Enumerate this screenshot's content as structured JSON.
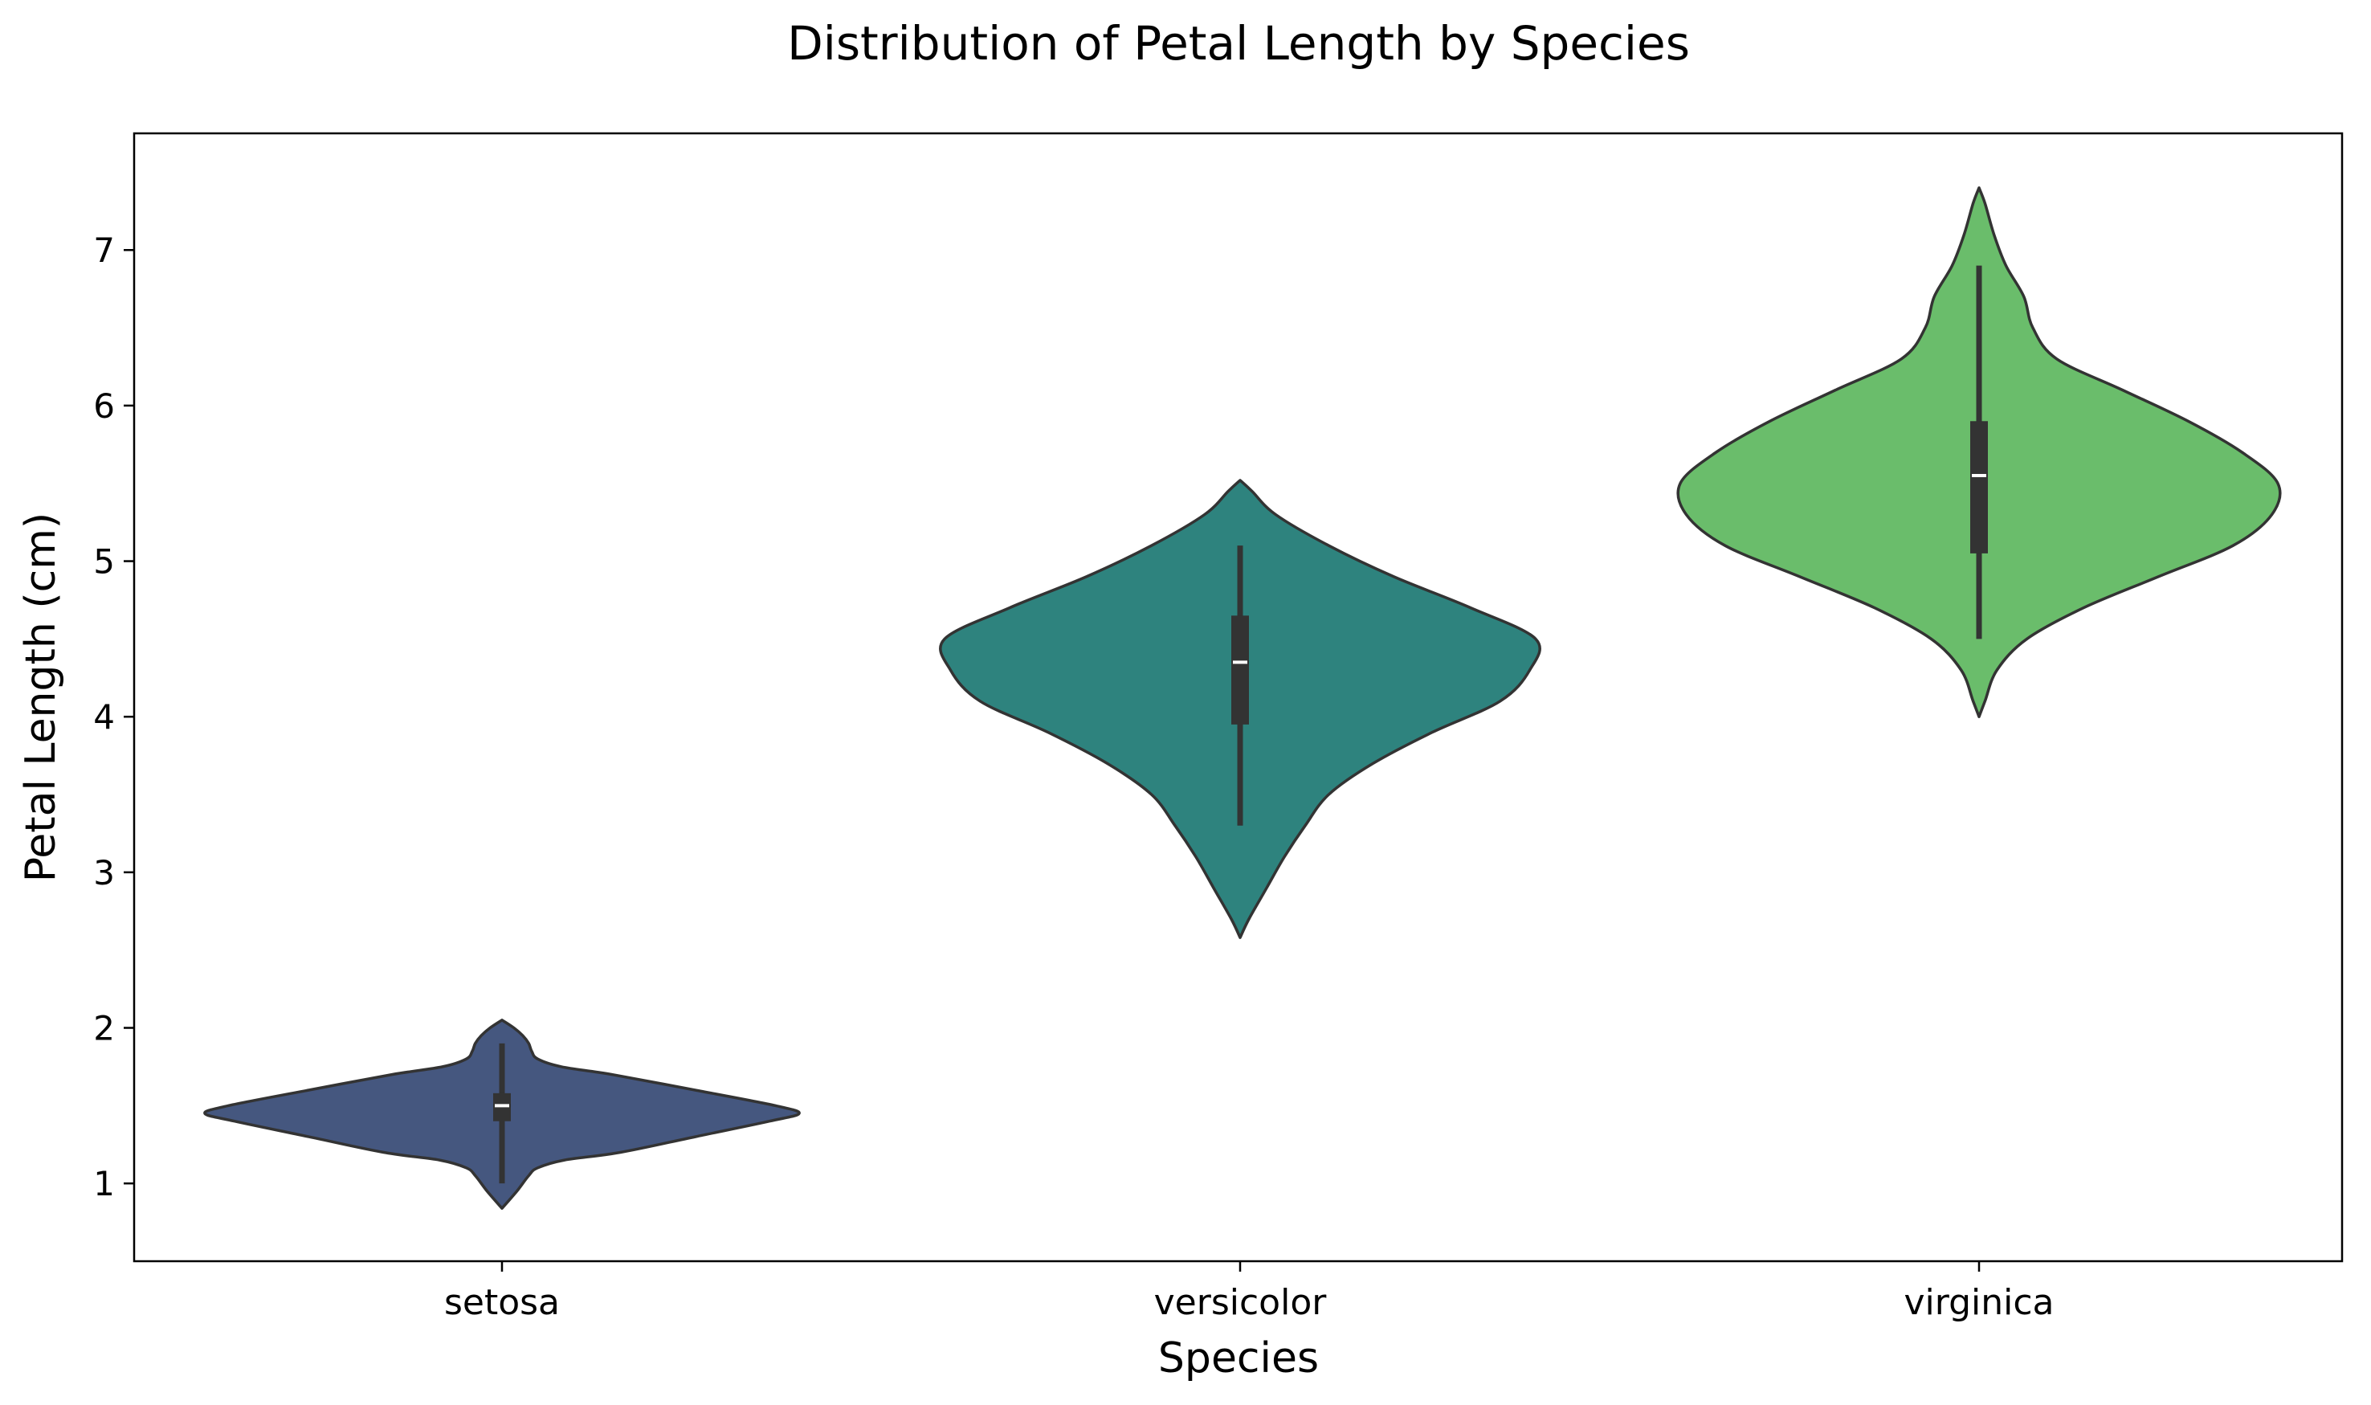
{
  "chart_data": {
    "type": "violin",
    "title": "Distribution of Petal Length by Species",
    "xlabel": "Species",
    "ylabel": "Petal Length (cm)",
    "ylim": [
      0.5,
      7.75
    ],
    "yticks": [
      1,
      2,
      3,
      4,
      5,
      6,
      7
    ],
    "categories": [
      "setosa",
      "versicolor",
      "virginica"
    ],
    "grid": false,
    "legend": "none",
    "series": [
      {
        "category": "setosa",
        "color": "#45577f",
        "min": 1.0,
        "q1": 1.4,
        "median": 1.5,
        "q3": 1.58,
        "max": 1.9,
        "violin_extent": [
          0.84,
          2.05
        ],
        "density": [
          [
            0.84,
            0.0
          ],
          [
            0.95,
            0.05
          ],
          [
            1.05,
            0.09
          ],
          [
            1.1,
            0.12
          ],
          [
            1.15,
            0.21
          ],
          [
            1.2,
            0.4
          ],
          [
            1.3,
            0.65
          ],
          [
            1.4,
            0.9
          ],
          [
            1.45,
            1.0
          ],
          [
            1.5,
            0.92
          ],
          [
            1.6,
            0.65
          ],
          [
            1.7,
            0.37
          ],
          [
            1.75,
            0.2
          ],
          [
            1.8,
            0.12
          ],
          [
            1.85,
            0.1
          ],
          [
            1.9,
            0.09
          ],
          [
            1.95,
            0.07
          ],
          [
            2.0,
            0.04
          ],
          [
            2.05,
            0.0
          ]
        ]
      },
      {
        "category": "versicolor",
        "color": "#2e837e",
        "min": 3.3,
        "q1": 3.95,
        "median": 4.35,
        "q3": 4.65,
        "max": 5.1,
        "violin_extent": [
          2.58,
          5.52
        ],
        "density": [
          [
            2.58,
            0.0
          ],
          [
            2.7,
            0.03
          ],
          [
            2.9,
            0.09
          ],
          [
            3.1,
            0.15
          ],
          [
            3.3,
            0.22
          ],
          [
            3.5,
            0.3
          ],
          [
            3.7,
            0.45
          ],
          [
            3.9,
            0.65
          ],
          [
            4.1,
            0.88
          ],
          [
            4.3,
            0.98
          ],
          [
            4.5,
            1.0
          ],
          [
            4.7,
            0.78
          ],
          [
            4.9,
            0.52
          ],
          [
            5.1,
            0.3
          ],
          [
            5.3,
            0.12
          ],
          [
            5.45,
            0.04
          ],
          [
            5.52,
            0.0
          ]
        ]
      },
      {
        "category": "virginica",
        "color": "#6abd6b",
        "min": 4.5,
        "q1": 5.05,
        "median": 5.55,
        "q3": 5.9,
        "max": 6.9,
        "violin_extent": [
          4.0,
          7.4
        ],
        "density": [
          [
            4.0,
            0.0
          ],
          [
            4.1,
            0.02
          ],
          [
            4.3,
            0.06
          ],
          [
            4.5,
            0.16
          ],
          [
            4.7,
            0.35
          ],
          [
            4.9,
            0.6
          ],
          [
            5.1,
            0.85
          ],
          [
            5.3,
            0.98
          ],
          [
            5.5,
            1.0
          ],
          [
            5.7,
            0.88
          ],
          [
            5.9,
            0.7
          ],
          [
            6.1,
            0.48
          ],
          [
            6.3,
            0.26
          ],
          [
            6.5,
            0.18
          ],
          [
            6.7,
            0.15
          ],
          [
            6.9,
            0.09
          ],
          [
            7.1,
            0.05
          ],
          [
            7.3,
            0.02
          ],
          [
            7.4,
            0.0
          ]
        ]
      }
    ]
  }
}
